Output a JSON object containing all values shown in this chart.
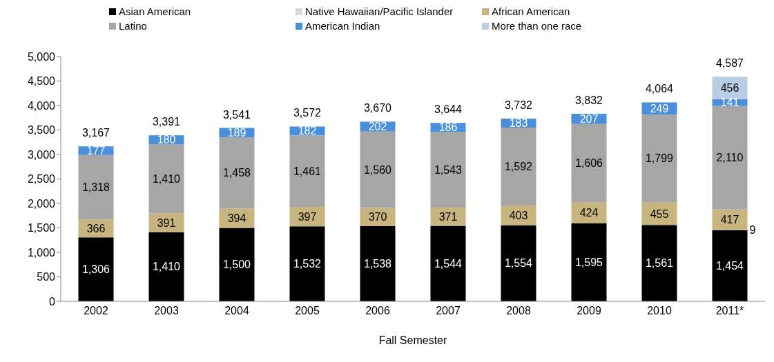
{
  "chart_data": {
    "type": "bar",
    "stacked": true,
    "xlabel": "Fall Semester",
    "categories": [
      "2002",
      "2003",
      "2004",
      "2005",
      "2006",
      "2007",
      "2008",
      "2009",
      "2010",
      "2011*"
    ],
    "series": [
      {
        "name": "Asian American",
        "color": "#000000",
        "values": [
          1306,
          1410,
          1500,
          1532,
          1538,
          1544,
          1554,
          1595,
          1561,
          1454
        ],
        "value_labels": [
          "1,306",
          "1,410",
          "1,500",
          "1,532",
          "1,538",
          "1,544",
          "1,554",
          "1,595",
          "1,561",
          "1,454"
        ]
      },
      {
        "name": "Native Hawaiian/Pacific Islander",
        "color": "#d9d9d9",
        "values": [
          null,
          null,
          null,
          null,
          null,
          null,
          null,
          null,
          null,
          9
        ],
        "value_labels": [
          null,
          null,
          null,
          null,
          null,
          null,
          null,
          null,
          null,
          "9"
        ]
      },
      {
        "name": "African American",
        "color": "#c8b47e",
        "values": [
          366,
          391,
          394,
          397,
          370,
          371,
          403,
          424,
          455,
          417
        ],
        "value_labels": [
          "366",
          "391",
          "394",
          "397",
          "370",
          "371",
          "403",
          "424",
          "455",
          "417"
        ]
      },
      {
        "name": "Latino",
        "color": "#a6a6a6",
        "values": [
          1318,
          1410,
          1458,
          1461,
          1560,
          1543,
          1592,
          1606,
          1799,
          2110
        ],
        "value_labels": [
          "1,318",
          "1,410",
          "1,458",
          "1,461",
          "1,560",
          "1,543",
          "1,592",
          "1,606",
          "1,799",
          "2,110"
        ]
      },
      {
        "name": "American Indian",
        "color": "#4a8fdc",
        "values": [
          177,
          180,
          189,
          182,
          202,
          186,
          183,
          207,
          249,
          141
        ],
        "value_labels": [
          "177",
          "180",
          "189",
          "182",
          "202",
          "186",
          "183",
          "207",
          "249",
          "141"
        ]
      },
      {
        "name": "More than one race",
        "color": "#b9cde5",
        "values": [
          null,
          null,
          null,
          null,
          null,
          null,
          null,
          null,
          null,
          456
        ],
        "value_labels": [
          null,
          null,
          null,
          null,
          null,
          null,
          null,
          null,
          null,
          "456"
        ]
      }
    ],
    "totals": [
      "3,167",
      "3,391",
      "3,541",
      "3,572",
      "3,670",
      "3,644",
      "3,732",
      "3,832",
      "4,064",
      "4,587"
    ],
    "ylim": [
      0,
      5000
    ],
    "yticks": [
      0,
      500,
      {
        "value": 1000,
        "label": "1,000"
      },
      {
        "value": 1500,
        "label": "1,500"
      },
      {
        "value": 2000,
        "label": "2,000"
      },
      {
        "value": 2500,
        "label": "2,500"
      },
      {
        "value": 3000,
        "label": "3,000"
      },
      {
        "value": 3500,
        "label": "3,500"
      },
      {
        "value": 4000,
        "label": "4,000"
      },
      {
        "value": 4500,
        "label": "4,500"
      },
      {
        "value": 5000,
        "label": "5,000"
      }
    ],
    "grid": false,
    "legend": "top"
  }
}
